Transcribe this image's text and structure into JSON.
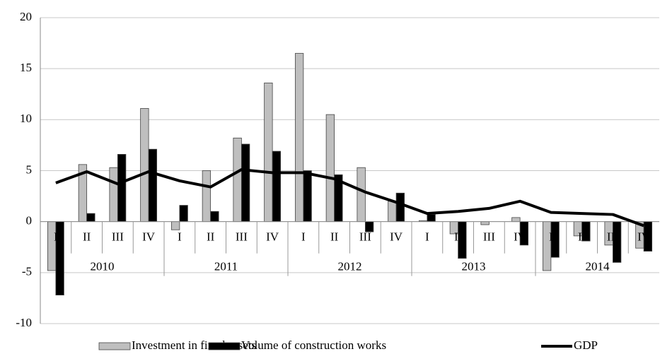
{
  "chart_data": {
    "type": "bar_line",
    "categories": [
      "I",
      "II",
      "III",
      "IV",
      "I",
      "II",
      "III",
      "IV",
      "I",
      "II",
      "III",
      "IV",
      "I",
      "II",
      "III",
      "IV",
      "I",
      "II",
      "III",
      "IV"
    ],
    "category_groups": [
      "2010",
      "2011",
      "2012",
      "2013",
      "2014"
    ],
    "series": [
      {
        "name": "Investment in fixed assets",
        "type": "bar",
        "color": "#bfbfbf",
        "values": [
          -4.8,
          5.6,
          5.3,
          11.1,
          -0.8,
          5.0,
          8.2,
          13.6,
          16.5,
          10.5,
          5.3,
          2.0,
          0.1,
          -1.2,
          -0.3,
          0.4,
          -4.8,
          -1.4,
          -2.3,
          -2.6
        ]
      },
      {
        "name": "Volume of construction works",
        "type": "bar",
        "color": "#000000",
        "values": [
          -7.2,
          0.8,
          6.6,
          7.1,
          1.6,
          1.0,
          7.6,
          6.9,
          5.0,
          4.6,
          -1.0,
          2.8,
          0.7,
          -3.6,
          0.0,
          -2.3,
          -3.5,
          -1.9,
          -4.0,
          -2.9
        ]
      },
      {
        "name": "GDP",
        "type": "line",
        "color": "#000000",
        "values": [
          3.8,
          4.9,
          3.7,
          4.9,
          4.0,
          3.4,
          5.1,
          4.8,
          4.8,
          4.2,
          2.9,
          1.9,
          0.8,
          1.0,
          1.3,
          2.0,
          0.9,
          0.8,
          0.7,
          -0.4
        ]
      }
    ],
    "ylim": [
      -10,
      20
    ],
    "yticks": [
      -10,
      -5,
      0,
      5,
      10,
      15,
      20
    ],
    "grid": true,
    "legend": "bottom"
  }
}
